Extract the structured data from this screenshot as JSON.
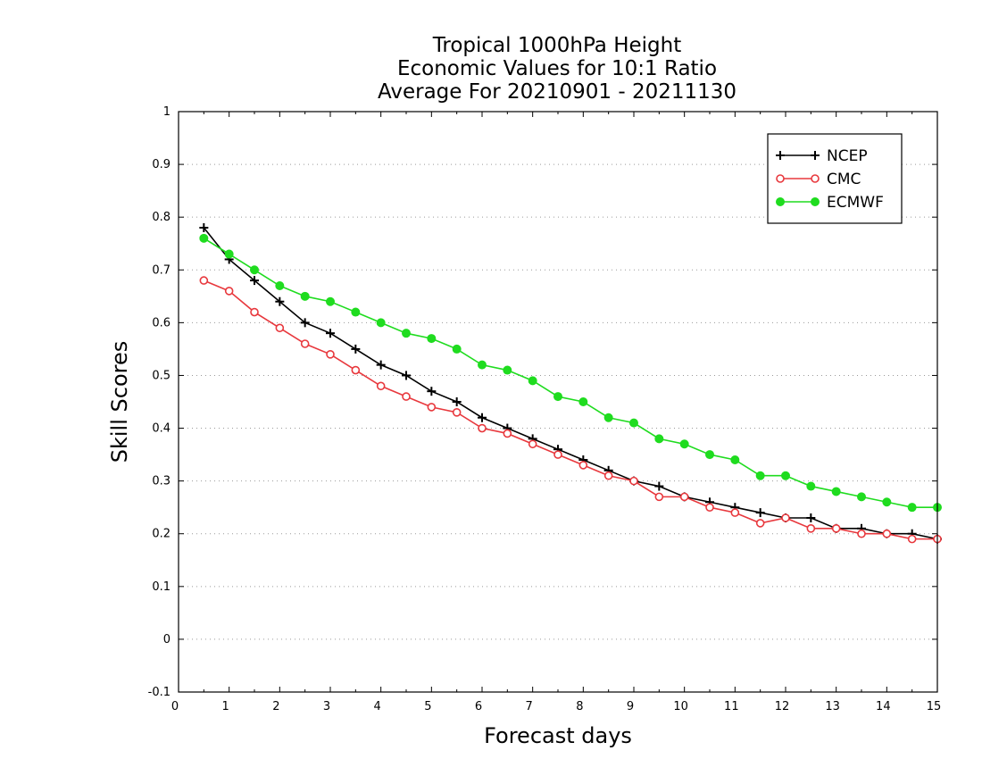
{
  "chart_data": {
    "type": "line",
    "title_lines": [
      "Tropical 1000hPa Height",
      "Economic Values for 10:1 Ratio",
      "Average For 20210901 - 20211130"
    ],
    "xlabel": "Forecast days",
    "ylabel": "Skill Scores",
    "xlim": [
      0,
      15
    ],
    "ylim": [
      -0.1,
      1
    ],
    "xticks": [
      "0",
      "1",
      "2",
      "3",
      "4",
      "5",
      "6",
      "7",
      "8",
      "9",
      "10",
      "11",
      "12",
      "13",
      "14",
      "15"
    ],
    "yticks": [
      "-0.1",
      "0",
      "0.1",
      "0.2",
      "0.3",
      "0.4",
      "0.5",
      "0.6",
      "0.7",
      "0.8",
      "0.9",
      "1"
    ],
    "grid": "horizontal dotted",
    "legend_position": "top-right",
    "x": [
      0.5,
      1,
      1.5,
      2,
      2.5,
      3,
      3.5,
      4,
      4.5,
      5,
      5.5,
      6,
      6.5,
      7,
      7.5,
      8,
      8.5,
      9,
      9.5,
      10,
      10.5,
      11,
      11.5,
      12,
      12.5,
      13,
      13.5,
      14,
      14.5,
      15
    ],
    "series": [
      {
        "name": "NCEP",
        "color": "#000000",
        "marker": "plus",
        "values": [
          0.78,
          0.72,
          0.68,
          0.64,
          0.6,
          0.58,
          0.55,
          0.52,
          0.5,
          0.47,
          0.45,
          0.42,
          0.4,
          0.38,
          0.36,
          0.34,
          0.32,
          0.3,
          0.29,
          0.27,
          0.26,
          0.25,
          0.24,
          0.23,
          0.23,
          0.21,
          0.21,
          0.2,
          0.2,
          0.19
        ]
      },
      {
        "name": "CMC",
        "color": "#e8383d",
        "marker": "open-circle",
        "values": [
          0.68,
          0.66,
          0.62,
          0.59,
          0.56,
          0.54,
          0.51,
          0.48,
          0.46,
          0.44,
          0.43,
          0.4,
          0.39,
          0.37,
          0.35,
          0.33,
          0.31,
          0.3,
          0.27,
          0.27,
          0.25,
          0.24,
          0.22,
          0.23,
          0.21,
          0.21,
          0.2,
          0.2,
          0.19,
          0.19
        ]
      },
      {
        "name": "ECMWF",
        "color": "#1fdc1f",
        "marker": "filled-circle",
        "values": [
          0.76,
          0.73,
          0.7,
          0.67,
          0.65,
          0.64,
          0.62,
          0.6,
          0.58,
          0.57,
          0.55,
          0.52,
          0.51,
          0.49,
          0.46,
          0.45,
          0.42,
          0.41,
          0.38,
          0.37,
          0.35,
          0.34,
          0.31,
          0.31,
          0.29,
          0.28,
          0.27,
          0.26,
          0.25,
          0.25
        ]
      }
    ]
  }
}
